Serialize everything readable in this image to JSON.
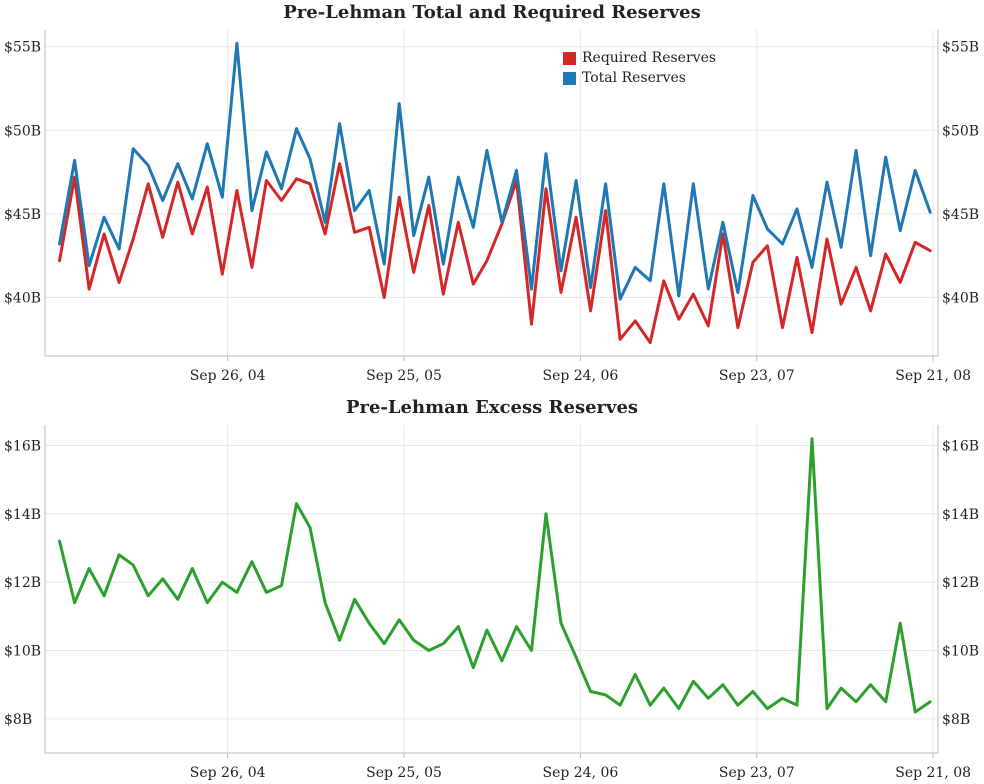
{
  "colors": {
    "required": "#d62728",
    "total": "#1f77b4",
    "excess": "#2ca02c",
    "grid": "#e8e8e8",
    "axis": "#bbbbbb"
  },
  "chart_data": [
    {
      "type": "line",
      "title": "Pre-Lehman Total and Required Reserves",
      "xlabel": "",
      "ylabel": "",
      "x_ticks": [
        "Sep 26, 04",
        "Sep 25, 05",
        "Sep 24, 06",
        "Sep 23, 07",
        "Sep 21, 08"
      ],
      "y_ticks": [
        "$40B",
        "$45B",
        "$50B",
        "$55B"
      ],
      "ylim": [
        36.5,
        56
      ],
      "grid": true,
      "legend": "top-right",
      "series": [
        {
          "name": "Required Reserves",
          "dates": [
            "2003-10",
            "2003-11",
            "2003-12",
            "2004-01",
            "2004-02",
            "2004-03",
            "2004-04",
            "2004-05",
            "2004-06",
            "2004-07",
            "2004-08",
            "2004-09",
            "2004-10",
            "2004-11",
            "2004-12",
            "2005-01",
            "2005-02",
            "2005-03",
            "2005-04",
            "2005-05",
            "2005-06",
            "2005-07",
            "2005-08",
            "2005-09",
            "2005-10",
            "2005-11",
            "2005-12",
            "2006-01",
            "2006-02",
            "2006-03",
            "2006-04",
            "2006-05",
            "2006-06",
            "2006-07",
            "2006-08",
            "2006-09",
            "2006-10",
            "2006-11",
            "2006-12",
            "2007-01",
            "2007-02",
            "2007-03",
            "2007-04",
            "2007-05",
            "2007-06",
            "2007-07",
            "2007-08",
            "2007-09",
            "2007-10",
            "2007-11",
            "2007-12",
            "2008-01",
            "2008-02",
            "2008-03",
            "2008-04",
            "2008-05",
            "2008-06",
            "2008-07",
            "2008-08",
            "2008-09"
          ],
          "values": [
            42.2,
            47.2,
            40.5,
            43.8,
            40.9,
            43.5,
            46.8,
            43.6,
            46.9,
            43.8,
            46.6,
            41.4,
            46.4,
            41.8,
            47.0,
            45.8,
            47.1,
            46.8,
            43.8,
            48.0,
            43.9,
            44.2,
            40.0,
            46.0,
            41.5,
            45.5,
            40.2,
            44.5,
            40.8,
            42.2,
            44.4,
            47.0,
            38.4,
            46.5,
            40.3,
            44.8,
            39.2,
            45.2,
            37.5,
            38.6,
            37.3,
            41.0,
            38.7,
            40.2,
            38.3,
            43.8,
            38.2,
            42.1,
            43.1,
            38.2,
            42.4,
            37.9,
            43.5,
            39.6,
            41.8,
            39.2,
            42.6,
            40.9,
            43.3,
            42.8
          ],
          "color": "#d62728"
        },
        {
          "name": "Total Reserves",
          "dates": [
            "2003-10",
            "2003-11",
            "2003-12",
            "2004-01",
            "2004-02",
            "2004-03",
            "2004-04",
            "2004-05",
            "2004-06",
            "2004-07",
            "2004-08",
            "2004-09",
            "2004-10",
            "2004-11",
            "2004-12",
            "2005-01",
            "2005-02",
            "2005-03",
            "2005-04",
            "2005-05",
            "2005-06",
            "2005-07",
            "2005-08",
            "2005-09",
            "2005-10",
            "2005-11",
            "2005-12",
            "2006-01",
            "2006-02",
            "2006-03",
            "2006-04",
            "2006-05",
            "2006-06",
            "2006-07",
            "2006-08",
            "2006-09",
            "2006-10",
            "2006-11",
            "2006-12",
            "2007-01",
            "2007-02",
            "2007-03",
            "2007-04",
            "2007-05",
            "2007-06",
            "2007-07",
            "2007-08",
            "2007-09",
            "2007-10",
            "2007-11",
            "2007-12",
            "2008-01",
            "2008-02",
            "2008-03",
            "2008-04",
            "2008-05",
            "2008-06",
            "2008-07",
            "2008-08",
            "2008-09"
          ],
          "values": [
            43.2,
            48.2,
            41.9,
            44.8,
            42.9,
            48.9,
            47.9,
            45.8,
            48.0,
            45.9,
            49.2,
            46.0,
            55.2,
            45.2,
            48.7,
            46.5,
            50.1,
            48.3,
            44.5,
            50.4,
            45.2,
            46.4,
            42.0,
            51.6,
            43.7,
            47.2,
            42.0,
            47.2,
            44.2,
            48.8,
            44.5,
            47.6,
            40.5,
            48.6,
            41.6,
            47.0,
            40.6,
            46.8,
            39.9,
            41.8,
            41.0,
            46.8,
            40.1,
            46.8,
            40.5,
            44.5,
            40.3,
            46.1,
            44.1,
            43.2,
            45.3,
            41.8,
            46.9,
            43.0,
            48.8,
            42.5,
            48.4,
            44.0,
            47.6,
            45.1
          ],
          "color": "#1f77b4"
        }
      ]
    },
    {
      "type": "line",
      "title": "Pre-Lehman Excess Reserves",
      "xlabel": "",
      "ylabel": "",
      "x_ticks": [
        "Sep 26, 04",
        "Sep 25, 05",
        "Sep 24, 06",
        "Sep 23, 07",
        "Sep 21, 08"
      ],
      "y_ticks": [
        "$8B",
        "$10B",
        "$12B",
        "$14B",
        "$16B"
      ],
      "ylim": [
        7.0,
        16.6
      ],
      "grid": true,
      "legend": "none",
      "series": [
        {
          "dates": [
            "2003-10",
            "2003-11",
            "2003-12",
            "2004-01",
            "2004-02",
            "2004-03",
            "2004-04",
            "2004-05",
            "2004-06",
            "2004-07",
            "2004-08",
            "2004-09",
            "2004-10",
            "2004-11",
            "2004-12",
            "2005-01",
            "2005-02",
            "2005-03",
            "2005-04",
            "2005-05",
            "2005-06",
            "2005-07",
            "2005-08",
            "2005-09",
            "2005-10",
            "2005-11",
            "2005-12",
            "2006-01",
            "2006-02",
            "2006-03",
            "2006-04",
            "2006-05",
            "2006-06",
            "2006-07",
            "2006-08",
            "2006-09",
            "2006-10",
            "2006-11",
            "2006-12",
            "2007-01",
            "2007-02",
            "2007-03",
            "2007-04",
            "2007-05",
            "2007-06",
            "2007-07",
            "2007-08",
            "2007-09",
            "2007-10",
            "2007-11",
            "2007-12",
            "2008-01",
            "2008-02",
            "2008-03",
            "2008-04",
            "2008-05",
            "2008-06",
            "2008-07",
            "2008-08",
            "2008-09"
          ],
          "values": [
            13.2,
            11.4,
            12.4,
            11.6,
            12.8,
            12.5,
            11.6,
            12.1,
            11.5,
            12.4,
            11.4,
            12.0,
            11.7,
            12.6,
            11.7,
            11.9,
            14.3,
            13.6,
            11.4,
            10.3,
            11.5,
            10.8,
            10.2,
            10.9,
            10.3,
            10.0,
            10.2,
            10.7,
            9.5,
            10.6,
            9.7,
            10.7,
            10.0,
            14.0,
            10.8,
            9.8,
            8.8,
            8.7,
            8.4,
            9.3,
            8.4,
            8.9,
            8.3,
            9.1,
            8.6,
            9.0,
            8.4,
            8.8,
            8.3,
            8.6,
            8.4,
            16.2,
            8.3,
            8.9,
            8.5,
            9.0,
            8.5,
            10.8,
            8.2,
            8.5
          ],
          "color": "#2ca02c"
        }
      ]
    }
  ]
}
